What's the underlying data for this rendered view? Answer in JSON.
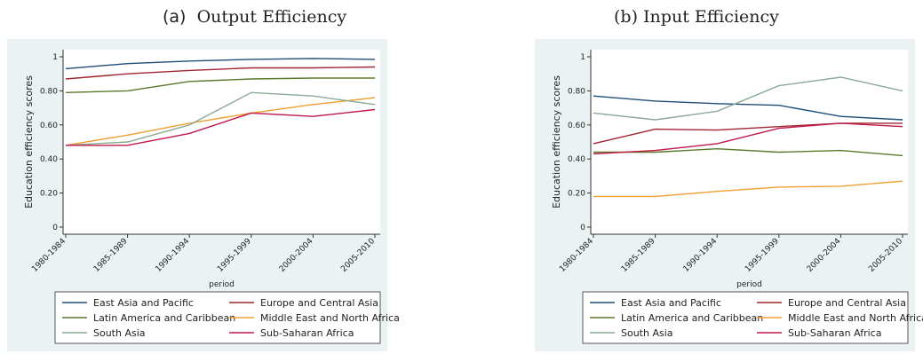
{
  "panels": [
    {
      "label": "(a)",
      "title": "Output Efficiency"
    },
    {
      "label": "(b)",
      "title": "Input Efficiency"
    }
  ],
  "chart_data": [
    {
      "type": "line",
      "title": "Output Efficiency",
      "panel_label": "(a)",
      "xlabel": "period",
      "ylabel": "Education efficiency scores",
      "ylim": [
        0,
        1
      ],
      "yticks": [
        "0",
        "0.20",
        "0.40",
        "0.60",
        "0.80",
        "1"
      ],
      "categories": [
        "1980-1984",
        "1985-1989",
        "1990-1994",
        "1995-1999",
        "2000-2004",
        "2005-2010"
      ],
      "grid": false,
      "legend_position": "bottom",
      "series": [
        {
          "name": "East Asia and Pacific",
          "color": "#1f4e79",
          "values": [
            0.93,
            0.96,
            0.975,
            0.985,
            0.99,
            0.985
          ]
        },
        {
          "name": "Europe and Central Asia",
          "color": "#a02631",
          "values": [
            0.87,
            0.9,
            0.92,
            0.935,
            0.935,
            0.94
          ]
        },
        {
          "name": "Latin America and Caribbean",
          "color": "#5a7a2a",
          "values": [
            0.79,
            0.8,
            0.855,
            0.87,
            0.875,
            0.875
          ]
        },
        {
          "name": "Middle East and North Africa",
          "color": "#f0a030",
          "values": [
            0.48,
            0.54,
            0.61,
            0.67,
            0.72,
            0.76
          ]
        },
        {
          "name": "South Asia",
          "color": "#8aaa96",
          "values": [
            0.48,
            0.5,
            0.6,
            0.79,
            0.77,
            0.72
          ]
        },
        {
          "name": "Sub-Saharan Africa",
          "color": "#c01848",
          "values": [
            0.48,
            0.48,
            0.55,
            0.67,
            0.65,
            0.69
          ]
        }
      ]
    },
    {
      "type": "line",
      "title": "Input Efficiency",
      "panel_label": "(b)",
      "xlabel": "period",
      "ylabel": "Education efficiency scores",
      "ylim": [
        0,
        1
      ],
      "yticks": [
        "0",
        "0.20",
        "0.40",
        "0.60",
        "0.80",
        "1"
      ],
      "categories": [
        "1980-1984",
        "1985-1989",
        "1990-1994",
        "1995-1999",
        "2000-2004",
        "2005-2010"
      ],
      "grid": false,
      "legend_position": "bottom",
      "series": [
        {
          "name": "East Asia and Pacific",
          "color": "#1f4e79",
          "values": [
            0.77,
            0.74,
            0.725,
            0.715,
            0.65,
            0.63
          ]
        },
        {
          "name": "Europe and Central Asia",
          "color": "#a02631",
          "values": [
            0.49,
            0.575,
            0.57,
            0.59,
            0.61,
            0.61
          ]
        },
        {
          "name": "Latin America and Caribbean",
          "color": "#5a7a2a",
          "values": [
            0.44,
            0.44,
            0.46,
            0.44,
            0.45,
            0.42
          ]
        },
        {
          "name": "Middle East and North Africa",
          "color": "#f0a030",
          "values": [
            0.18,
            0.18,
            0.21,
            0.235,
            0.24,
            0.27
          ]
        },
        {
          "name": "South Asia",
          "color": "#8aaa96",
          "values": [
            0.67,
            0.63,
            0.68,
            0.83,
            0.88,
            0.8
          ]
        },
        {
          "name": "Sub-Saharan Africa",
          "color": "#c01848",
          "values": [
            0.43,
            0.45,
            0.49,
            0.58,
            0.61,
            0.59
          ]
        }
      ]
    }
  ]
}
